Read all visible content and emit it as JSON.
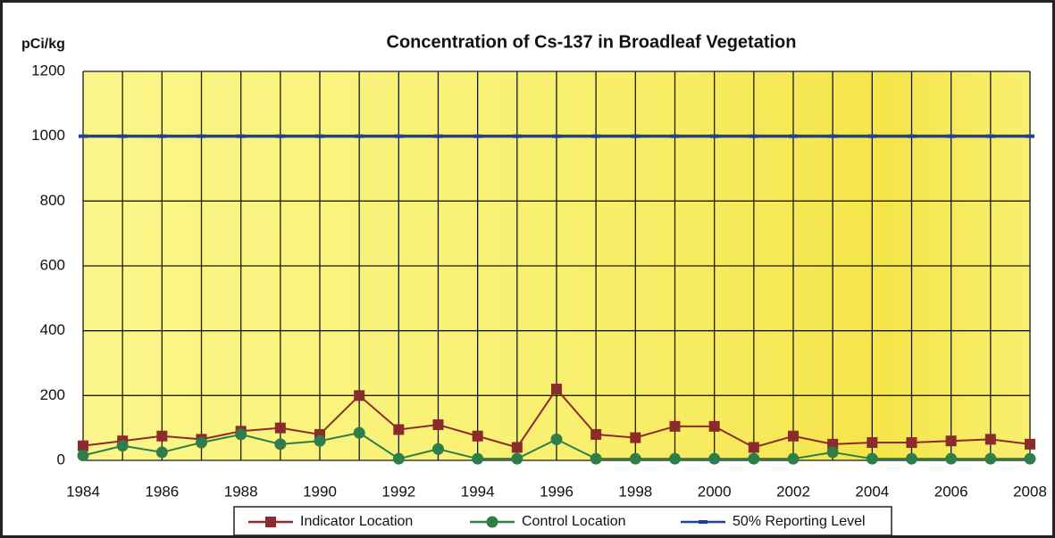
{
  "chart_data": {
    "type": "line",
    "title": "Concentration of Cs-137  in Broadleaf Vegetation",
    "y_label": "pCi/kg",
    "x": [
      1984,
      1985,
      1986,
      1987,
      1988,
      1989,
      1990,
      1991,
      1992,
      1993,
      1994,
      1995,
      1996,
      1997,
      1998,
      1999,
      2000,
      2001,
      2002,
      2003,
      2004,
      2005,
      2006,
      2007,
      2008
    ],
    "xlim": [
      1984,
      2008
    ],
    "xticks": [
      1984,
      1986,
      1988,
      1990,
      1992,
      1994,
      1996,
      1998,
      2000,
      2002,
      2004,
      2006,
      2008
    ],
    "ylim": [
      0,
      1200
    ],
    "yticks": [
      0,
      200,
      400,
      600,
      800,
      1000,
      1200
    ],
    "grid": true,
    "legend": "bottom",
    "series": [
      {
        "name": "Indicator Location",
        "color": "#8b2b2b",
        "marker": "square",
        "values": [
          45,
          60,
          75,
          65,
          90,
          100,
          80,
          200,
          95,
          110,
          75,
          40,
          220,
          80,
          70,
          105,
          105,
          40,
          75,
          50,
          55,
          55,
          60,
          65,
          50
        ]
      },
      {
        "name": "Control Location",
        "color": "#2e7d4a",
        "marker": "circle",
        "values": [
          15,
          45,
          25,
          55,
          80,
          50,
          60,
          85,
          5,
          35,
          5,
          5,
          65,
          5,
          5,
          5,
          5,
          5,
          5,
          25,
          5,
          5,
          5,
          5,
          5
        ]
      },
      {
        "name": "50% Reporting Level",
        "color": "#1f3f9f",
        "marker": "dash",
        "values": [
          1000,
          1000,
          1000,
          1000,
          1000,
          1000,
          1000,
          1000,
          1000,
          1000,
          1000,
          1000,
          1000,
          1000,
          1000,
          1000,
          1000,
          1000,
          1000,
          1000,
          1000,
          1000,
          1000,
          1000,
          1000
        ]
      }
    ]
  }
}
